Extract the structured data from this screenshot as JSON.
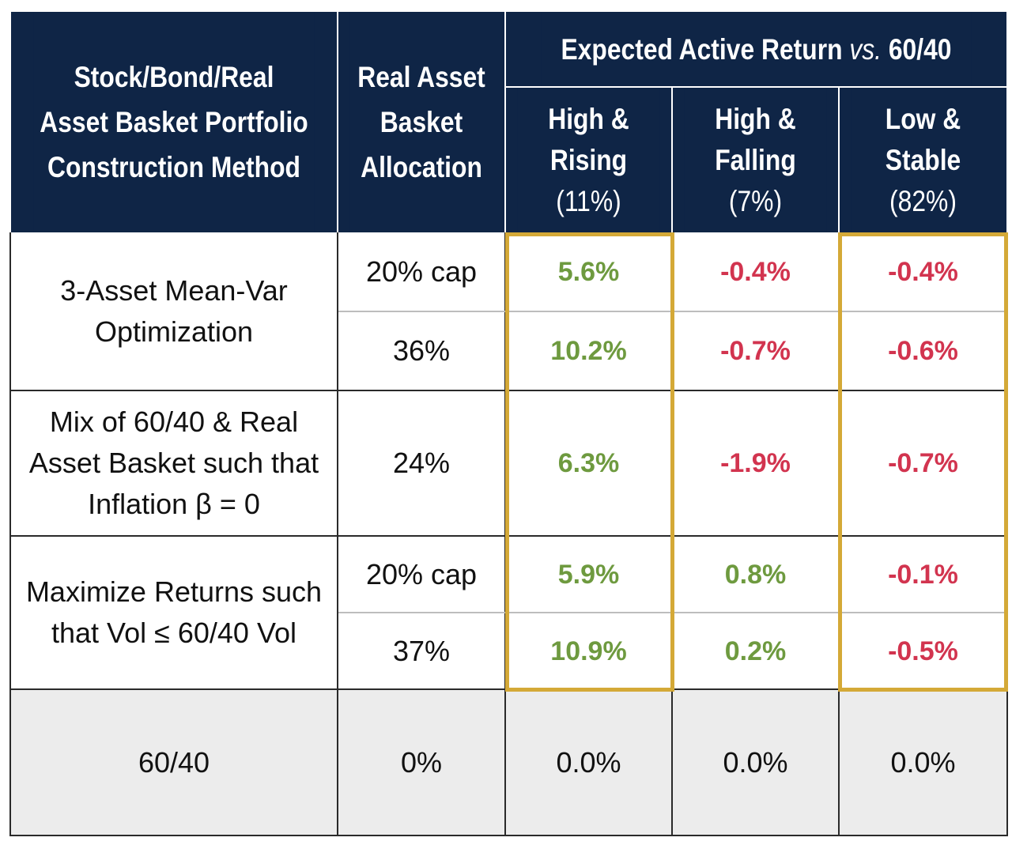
{
  "colors": {
    "header_bg": "#0f2546",
    "header_text": "#ffffff",
    "positive": "#6e9a3f",
    "negative": "#d2344f",
    "neutral": "#111111",
    "highlight": "#d4a937",
    "footer_bg": "#ececec"
  },
  "chart_data": {
    "type": "table",
    "title": "Expected Active Return vs. 60/40",
    "columns": {
      "method": [
        "Stock/Bond/Real",
        "Asset Basket Portfolio",
        "Construction Method"
      ],
      "allocation": [
        "Real Asset",
        "Basket",
        "Allocation"
      ],
      "group_title_main": "Expected Active Return ",
      "group_title_vs": "vs.",
      "group_title_tail": " 60/40",
      "scenarios": [
        {
          "line1": "High &",
          "line2": "Rising",
          "weight": "(11%)"
        },
        {
          "line1": "High &",
          "line2": "Falling",
          "weight": "(7%)"
        },
        {
          "line1": "Low &",
          "line2": "Stable",
          "weight": "(82%)"
        }
      ]
    },
    "rows": [
      {
        "allocation": "20% cap",
        "returns": [
          "5.6%",
          "-0.4%",
          "-0.4%"
        ],
        "signs": [
          "pos",
          "neg",
          "neg"
        ]
      },
      {
        "allocation": "36%",
        "returns": [
          "10.2%",
          "-0.7%",
          "-0.6%"
        ],
        "signs": [
          "pos",
          "neg",
          "neg"
        ]
      },
      {
        "allocation": "24%",
        "returns": [
          "6.3%",
          "-1.9%",
          "-0.7%"
        ],
        "signs": [
          "pos",
          "neg",
          "neg"
        ]
      },
      {
        "allocation": "20% cap",
        "returns": [
          "5.9%",
          "0.8%",
          "-0.1%"
        ],
        "signs": [
          "pos",
          "pos",
          "neg"
        ]
      },
      {
        "allocation": "37%",
        "returns": [
          "10.9%",
          "0.2%",
          "-0.5%"
        ],
        "signs": [
          "pos",
          "pos",
          "neg"
        ]
      },
      {
        "allocation": "0%",
        "returns": [
          "0.0%",
          "0.0%",
          "0.0%"
        ],
        "signs": [
          "zero",
          "zero",
          "zero"
        ]
      }
    ],
    "methods": [
      {
        "lines": [
          "3-Asset Mean-Var",
          "Optimization"
        ]
      },
      {
        "lines": [
          "Mix of 60/40 & Real",
          "Asset Basket such that",
          "Inflation β = 0"
        ]
      },
      {
        "lines": [
          "Maximize Returns such",
          "that Vol ≤ 60/40 Vol"
        ]
      },
      {
        "lines": [
          "60/40"
        ]
      }
    ],
    "highlighted_scenarios": [
      "High & Rising",
      "Low & Stable"
    ]
  }
}
